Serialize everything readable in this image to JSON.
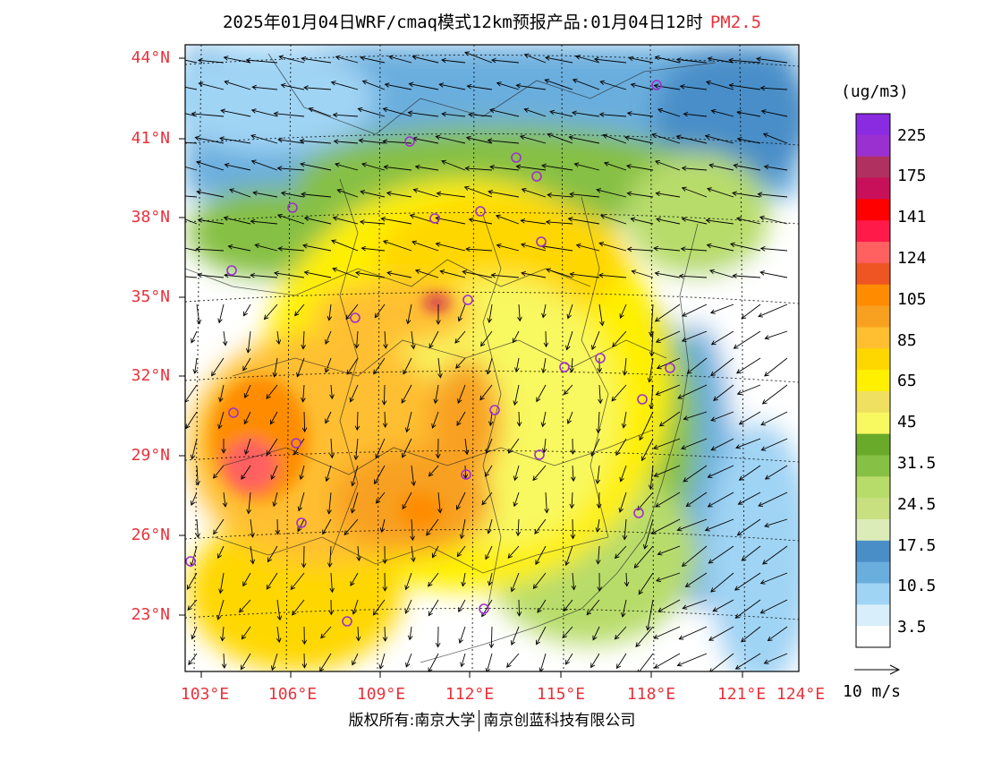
{
  "title": {
    "main": "2025年01月04日WRF/cmaq模式12km预报产品:01月04日12时",
    "pollutant": "PM2.5"
  },
  "latitude_labels": [
    "44°N",
    "41°N",
    "38°N",
    "35°N",
    "32°N",
    "29°N",
    "26°N",
    "23°N"
  ],
  "longitude_labels": [
    "103°E",
    "106°E",
    "109°E",
    "112°E",
    "115°E",
    "118°E",
    "121°E",
    "124°E"
  ],
  "colorbar": {
    "unit": "(ug/m3)",
    "labels": [
      "225",
      "175",
      "141",
      "124",
      "105",
      "85",
      "65",
      "45",
      "31.5",
      "24.5",
      "17.5",
      "10.5",
      "3.5"
    ],
    "colors": [
      "#8a2be2",
      "#9b30d0",
      "#b03060",
      "#c8105a",
      "#ff0000",
      "#ff1a4a",
      "#ff6060",
      "#ee5522",
      "#ff8c00",
      "#f8a020",
      "#ffbf30",
      "#ffd700",
      "#fff000",
      "#f0e060",
      "#f8f860",
      "#6aaa2a",
      "#86c044",
      "#b8dc6a",
      "#c8e080",
      "#dcecb8",
      "#4a8ec8",
      "#6aaede",
      "#a0d4f4",
      "#d8eefa",
      "#ffffff"
    ]
  },
  "wind_legend": {
    "label": "10 m/s"
  },
  "copyright": {
    "left": "版权所有:南京大学",
    "right": "南京创蓝科技有限公司"
  }
}
